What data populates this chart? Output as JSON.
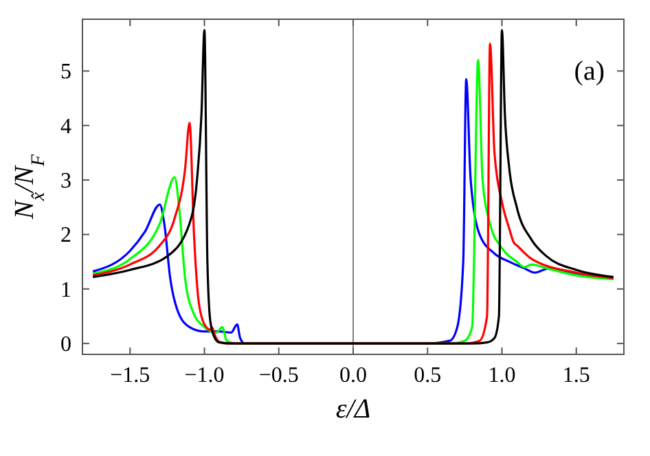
{
  "chart_data": {
    "type": "line",
    "xlabel": "ε/Δ",
    "ylabel": "N$_{x̂}$/N$_{F}$",
    "annotations": [
      "(a)"
    ],
    "xlim": [
      -1.82,
      1.82
    ],
    "ylim": [
      -0.2,
      5.95
    ],
    "xticks": [
      {
        "value": -1.5,
        "label": "−1.5"
      },
      {
        "value": -1,
        "label": "−1.0"
      },
      {
        "value": -0.5,
        "label": "−0.5"
      },
      {
        "value": 0,
        "label": "0.0"
      },
      {
        "value": 0.5,
        "label": "0.5"
      },
      {
        "value": 1,
        "label": "1.0"
      },
      {
        "value": 1.5,
        "label": "1.5"
      }
    ],
    "yticks": [
      0,
      1,
      2,
      3,
      4,
      5
    ],
    "grid": false,
    "marker": "none",
    "line_style": "solid",
    "ref_lines": [
      {
        "axis": "x",
        "value": 0,
        "color": "#808080"
      }
    ],
    "series": [
      {
        "color": "#0000ff",
        "x": [
          -1.75,
          -1.5,
          -1.4,
          -1.3,
          -1.27,
          -1.23,
          -1.18,
          -1.1,
          -1.0,
          -0.9,
          -0.82,
          -0.78,
          -0.76,
          -0.73,
          0,
          0.5,
          0.65,
          0.7,
          0.74,
          0.76,
          0.79,
          0.85,
          0.95,
          1.05,
          1.15,
          1.22,
          1.28,
          1.32,
          1.5,
          1.75
        ],
        "values": [
          1.32,
          1.7,
          2.05,
          2.55,
          2.2,
          1.2,
          0.6,
          0.3,
          0.22,
          0.22,
          0.2,
          0.35,
          0.1,
          0.0,
          0,
          0,
          0.05,
          0.3,
          1.5,
          4.85,
          3.0,
          2.0,
          1.65,
          1.5,
          1.38,
          1.3,
          1.35,
          1.38,
          1.28,
          1.18
        ]
      },
      {
        "color": "#00ff00",
        "x": [
          -1.75,
          -1.5,
          -1.3,
          -1.2,
          -1.17,
          -1.13,
          -1.08,
          -1.0,
          -0.92,
          -0.88,
          -0.85,
          -0.8,
          0,
          0.65,
          0.75,
          0.8,
          0.84,
          0.87,
          0.92,
          1.0,
          1.1,
          1.15,
          1.2,
          1.3,
          1.5,
          1.75
        ],
        "values": [
          1.28,
          1.55,
          2.2,
          3.05,
          2.5,
          1.2,
          0.6,
          0.3,
          0.2,
          0.3,
          0.05,
          0,
          0,
          0,
          0.05,
          0.3,
          5.2,
          3.0,
          2.2,
          1.75,
          1.5,
          1.4,
          1.45,
          1.38,
          1.25,
          1.18
        ]
      },
      {
        "color": "#ff0000",
        "x": [
          -1.75,
          -1.5,
          -1.3,
          -1.2,
          -1.13,
          -1.1,
          -1.07,
          -1.04,
          -1.0,
          -0.96,
          -0.95,
          -0.93,
          -0.9,
          -0.85,
          0,
          0.75,
          0.85,
          0.9,
          0.92,
          0.95,
          1.0,
          1.05,
          1.08,
          1.1,
          1.2,
          1.5,
          1.75
        ],
        "values": [
          1.25,
          1.45,
          1.8,
          2.3,
          3.2,
          4.05,
          2.0,
          0.8,
          0.35,
          0.25,
          0.3,
          0.15,
          0.03,
          0,
          0,
          0,
          0.05,
          0.5,
          5.5,
          3.5,
          2.6,
          2.1,
          1.85,
          1.8,
          1.55,
          1.3,
          1.2
        ]
      },
      {
        "color": "#000000",
        "x": [
          -1.75,
          -1.5,
          -1.25,
          -1.1,
          -1.05,
          -1.02,
          -1.0,
          -0.98,
          -0.96,
          -0.93,
          -0.9,
          -0.8,
          0,
          0.8,
          0.9,
          0.95,
          0.98,
          1.0,
          1.02,
          1.05,
          1.1,
          1.2,
          1.3,
          1.5,
          1.75
        ],
        "values": [
          1.22,
          1.35,
          1.6,
          2.2,
          3.0,
          4.2,
          5.75,
          1.5,
          0.4,
          0.1,
          0.02,
          0,
          0,
          0,
          0.02,
          0.1,
          0.5,
          5.75,
          4.2,
          3.2,
          2.5,
          1.9,
          1.6,
          1.35,
          1.22
        ]
      }
    ]
  }
}
